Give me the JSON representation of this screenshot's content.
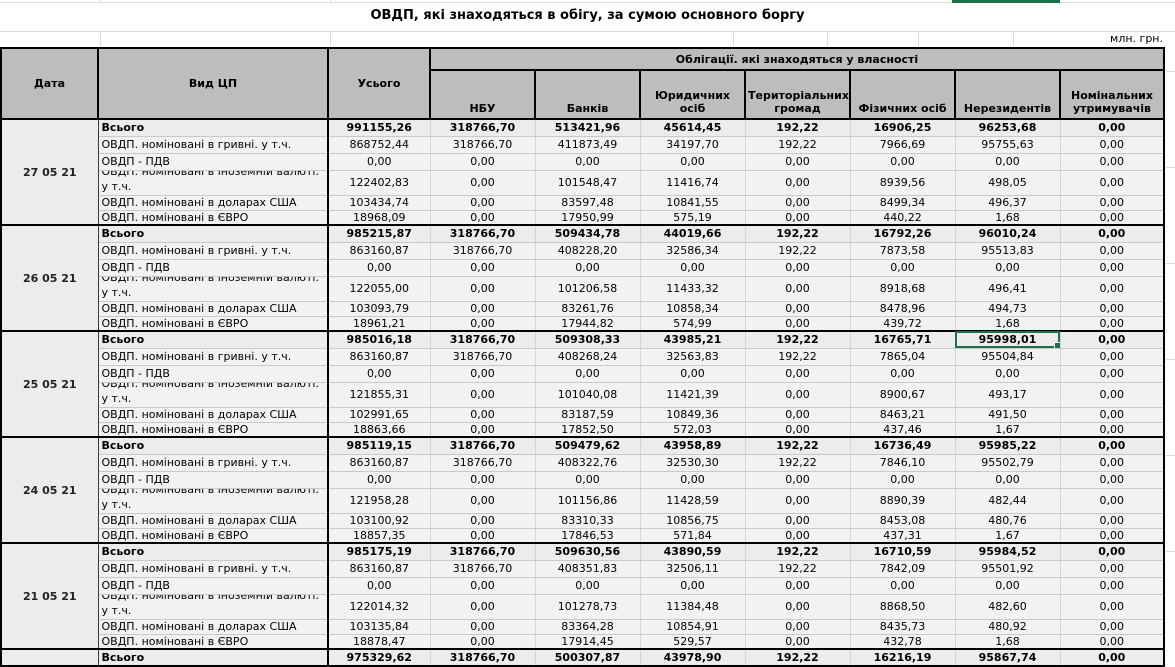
{
  "title": "ОВДП, які знаходяться в обігу, за сумою основного боргу",
  "unit_label": "млн. грн.",
  "colors": {
    "selection_green": "#1e7145",
    "header_bg": "#bdbdbd",
    "cell_bg": "#f2f2f2"
  },
  "table": {
    "col_headers": {
      "date": "Дата",
      "type": "Вид ЦП",
      "total": "Усього",
      "ownership_band": "Облігації. які знаходяться у власності",
      "owners": [
        "НБУ",
        "Банків",
        "Юридичних осіб",
        "Територіальних громад",
        "Фізичних осіб",
        "Нерезидентів",
        "Номінальних утримувачів"
      ]
    },
    "row_labels": [
      "Всього",
      "ОВДП. номіновані в гривні. у т.ч.",
      "ОВДП - ПДВ",
      "ОВДП. номіновані в іноземній валюті. у т.ч.",
      "ОВДП. номіновані в доларах США",
      "ОВДП. номіновані в ЄВРО"
    ],
    "groups": [
      {
        "date": "27 05 21",
        "rows": [
          [
            "991155,26",
            "318766,70",
            "513421,96",
            "45614,45",
            "192,22",
            "16906,25",
            "96253,68",
            "0,00"
          ],
          [
            "868752,44",
            "318766,70",
            "411873,49",
            "34197,70",
            "192,22",
            "7966,69",
            "95755,63",
            "0,00"
          ],
          [
            "0,00",
            "0,00",
            "0,00",
            "0,00",
            "0,00",
            "0,00",
            "0,00",
            "0,00"
          ],
          [
            "122402,83",
            "0,00",
            "101548,47",
            "11416,74",
            "0,00",
            "8939,56",
            "498,05",
            "0,00"
          ],
          [
            "103434,74",
            "0,00",
            "83597,48",
            "10841,55",
            "0,00",
            "8499,34",
            "496,37",
            "0,00"
          ],
          [
            "18968,09",
            "0,00",
            "17950,99",
            "575,19",
            "0,00",
            "440,22",
            "1,68",
            "0,00"
          ]
        ]
      },
      {
        "date": "26 05 21",
        "rows": [
          [
            "985215,87",
            "318766,70",
            "509434,78",
            "44019,66",
            "192,22",
            "16792,26",
            "96010,24",
            "0,00"
          ],
          [
            "863160,87",
            "318766,70",
            "408228,20",
            "32586,34",
            "192,22",
            "7873,58",
            "95513,83",
            "0,00"
          ],
          [
            "0,00",
            "0,00",
            "0,00",
            "0,00",
            "0,00",
            "0,00",
            "0,00",
            "0,00"
          ],
          [
            "122055,00",
            "0,00",
            "101206,58",
            "11433,32",
            "0,00",
            "8918,68",
            "496,41",
            "0,00"
          ],
          [
            "103093,79",
            "0,00",
            "83261,76",
            "10858,34",
            "0,00",
            "8478,96",
            "494,73",
            "0,00"
          ],
          [
            "18961,21",
            "0,00",
            "17944,82",
            "574,99",
            "0,00",
            "439,72",
            "1,68",
            "0,00"
          ]
        ]
      },
      {
        "date": "25 05 21",
        "rows": [
          [
            "985016,18",
            "318766,70",
            "509308,33",
            "43985,21",
            "192,22",
            "16765,71",
            "95998,01",
            "0,00"
          ],
          [
            "863160,87",
            "318766,70",
            "408268,24",
            "32563,83",
            "192,22",
            "7865,04",
            "95504,84",
            "0,00"
          ],
          [
            "0,00",
            "0,00",
            "0,00",
            "0,00",
            "0,00",
            "0,00",
            "0,00",
            "0,00"
          ],
          [
            "121855,31",
            "0,00",
            "101040,08",
            "11421,39",
            "0,00",
            "8900,67",
            "493,17",
            "0,00"
          ],
          [
            "102991,65",
            "0,00",
            "83187,59",
            "10849,36",
            "0,00",
            "8463,21",
            "491,50",
            "0,00"
          ],
          [
            "18863,66",
            "0,00",
            "17852,50",
            "572,03",
            "0,00",
            "437,46",
            "1,67",
            "0,00"
          ]
        ]
      },
      {
        "date": "24 05 21",
        "rows": [
          [
            "985119,15",
            "318766,70",
            "509479,62",
            "43958,89",
            "192,22",
            "16736,49",
            "95985,22",
            "0,00"
          ],
          [
            "863160,87",
            "318766,70",
            "408322,76",
            "32530,30",
            "192,22",
            "7846,10",
            "95502,79",
            "0,00"
          ],
          [
            "0,00",
            "0,00",
            "0,00",
            "0,00",
            "0,00",
            "0,00",
            "0,00",
            "0,00"
          ],
          [
            "121958,28",
            "0,00",
            "101156,86",
            "11428,59",
            "0,00",
            "8890,39",
            "482,44",
            "0,00"
          ],
          [
            "103100,92",
            "0,00",
            "83310,33",
            "10856,75",
            "0,00",
            "8453,08",
            "480,76",
            "0,00"
          ],
          [
            "18857,35",
            "0,00",
            "17846,53",
            "571,84",
            "0,00",
            "437,31",
            "1,67",
            "0,00"
          ]
        ]
      },
      {
        "date": "21 05 21",
        "rows": [
          [
            "985175,19",
            "318766,70",
            "509630,56",
            "43890,59",
            "192,22",
            "16710,59",
            "95984,52",
            "0,00"
          ],
          [
            "863160,87",
            "318766,70",
            "408351,83",
            "32506,11",
            "192,22",
            "7842,09",
            "95501,92",
            "0,00"
          ],
          [
            "0,00",
            "0,00",
            "0,00",
            "0,00",
            "0,00",
            "0,00",
            "0,00",
            "0,00"
          ],
          [
            "122014,32",
            "0,00",
            "101278,73",
            "11384,48",
            "0,00",
            "8868,50",
            "482,60",
            "0,00"
          ],
          [
            "103135,84",
            "0,00",
            "83364,28",
            "10854,91",
            "0,00",
            "8435,73",
            "480,92",
            "0,00"
          ],
          [
            "18878,47",
            "0,00",
            "17914,45",
            "529,57",
            "0,00",
            "432,78",
            "1,68",
            "0,00"
          ]
        ]
      }
    ],
    "partial_row": {
      "date": "",
      "label": "Всього",
      "values": [
        "975329,62",
        "318766,70",
        "500307,87",
        "43978,90",
        "192,22",
        "16216,19",
        "95867,74",
        "0,00"
      ]
    },
    "selection": {
      "group_index": 2,
      "row_index": 0,
      "value_index": 6
    }
  }
}
